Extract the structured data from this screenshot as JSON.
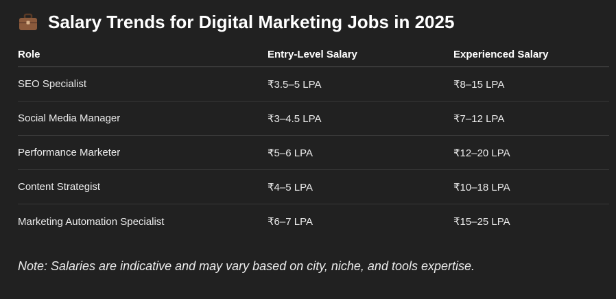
{
  "heading": {
    "icon": "briefcase-icon",
    "title": "Salary Trends for Digital Marketing Jobs in 2025"
  },
  "table": {
    "headers": [
      "Role",
      "Entry-Level Salary",
      "Experienced Salary"
    ],
    "rows": [
      [
        "SEO Specialist",
        "₹3.5–5 LPA",
        "₹8–15 LPA"
      ],
      [
        "Social Media Manager",
        "₹3–4.5 LPA",
        "₹7–12 LPA"
      ],
      [
        "Performance Marketer",
        "₹5–6 LPA",
        "₹12–20 LPA"
      ],
      [
        "Content Strategist",
        "₹4–5 LPA",
        "₹10–18 LPA"
      ],
      [
        "Marketing Automation Specialist",
        "₹6–7 LPA",
        "₹15–25 LPA"
      ]
    ]
  },
  "note": "Note: Salaries are indicative and may vary based on city, niche, and tools expertise.",
  "colors": {
    "background": "#212121",
    "text": "#ececec",
    "divider": "#3a3a3a",
    "briefcase": "#8b5a3c"
  }
}
